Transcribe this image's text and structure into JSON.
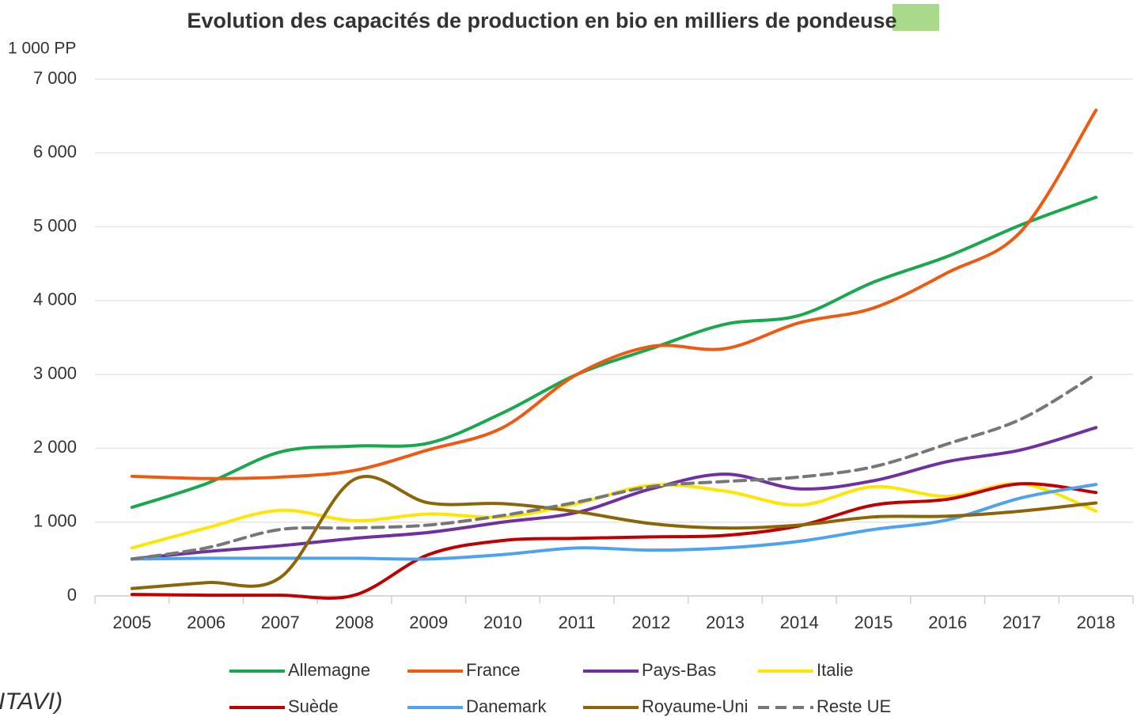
{
  "chart_data": {
    "type": "line",
    "title": "Evolution des capacités de production en bio en milliers de pondeuse",
    "y_axis_label": "1 000 PP",
    "source": "ITAVI)",
    "categories": [
      "2005",
      "2006",
      "2007",
      "2008",
      "2009",
      "2010",
      "2011",
      "2012",
      "2013",
      "2014",
      "2015",
      "2016",
      "2017",
      "2018"
    ],
    "ylim": [
      0,
      7000
    ],
    "yticks": [
      0,
      {
        "value": 1000,
        "label": "1 000"
      },
      {
        "value": 2000,
        "label": "2 000"
      },
      {
        "value": 3000,
        "label": "3 000"
      },
      {
        "value": 4000,
        "label": "4 000"
      },
      {
        "value": 5000,
        "label": "5 000"
      },
      {
        "value": 6000,
        "label": "6 000"
      },
      {
        "value": 7000,
        "label": "7 000"
      }
    ],
    "grid": true,
    "legend": "bottom",
    "series": [
      {
        "name": "Allemagne",
        "color": "#1aa84f",
        "values": [
          1200,
          1520,
          1950,
          2030,
          2070,
          2480,
          3000,
          3350,
          3680,
          3800,
          4250,
          4600,
          5030,
          5400
        ]
      },
      {
        "name": "France",
        "color": "#ef5a12",
        "values": [
          1620,
          1590,
          1610,
          1700,
          1980,
          2280,
          3000,
          3380,
          3350,
          3700,
          3900,
          4380,
          4950,
          6580
        ]
      },
      {
        "name": "Pays-Bas",
        "color": "#7030a0",
        "values": [
          500,
          600,
          680,
          780,
          860,
          1000,
          1130,
          1450,
          1650,
          1450,
          1560,
          1820,
          1980,
          2280
        ]
      },
      {
        "name": "Italie",
        "color": "#ffe600",
        "values": [
          650,
          920,
          1160,
          1020,
          1110,
          1070,
          1250,
          1500,
          1420,
          1230,
          1480,
          1350,
          1520,
          1150
        ]
      },
      {
        "name": "Suède",
        "color": "#c00000",
        "values": [
          20,
          10,
          10,
          10,
          560,
          750,
          780,
          800,
          820,
          950,
          1230,
          1310,
          1520,
          1400
        ]
      },
      {
        "name": "Danemark",
        "color": "#4ea3ee",
        "values": [
          500,
          510,
          510,
          510,
          500,
          560,
          650,
          620,
          650,
          740,
          900,
          1030,
          1330,
          1510
        ]
      },
      {
        "name": "Royaume-Uni",
        "color": "#8b6508",
        "values": [
          100,
          180,
          250,
          1580,
          1260,
          1250,
          1140,
          980,
          920,
          960,
          1070,
          1080,
          1150,
          1260
        ]
      },
      {
        "name": "Reste UE",
        "color": "#777777",
        "dashed": true,
        "values": [
          500,
          650,
          900,
          920,
          960,
          1090,
          1270,
          1480,
          1550,
          1610,
          1750,
          2060,
          2400,
          3000
        ]
      }
    ]
  }
}
